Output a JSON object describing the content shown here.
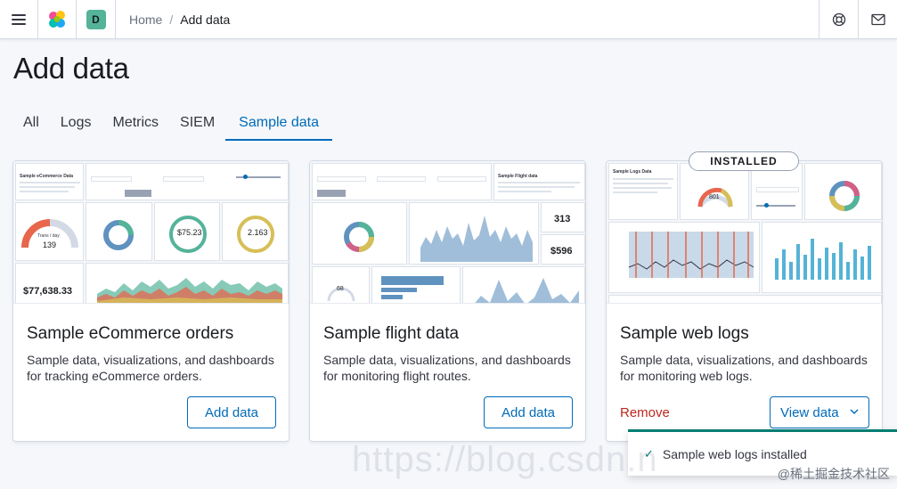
{
  "header": {
    "space_initial": "D",
    "breadcrumbs": {
      "home": "Home",
      "separator": "/",
      "current": "Add data"
    },
    "icons": [
      "menu-icon",
      "kibana-logo",
      "help-icon",
      "mail-icon"
    ]
  },
  "page": {
    "title": "Add data"
  },
  "tabs": [
    {
      "label": "All",
      "active": false
    },
    {
      "label": "Logs",
      "active": false
    },
    {
      "label": "Metrics",
      "active": false
    },
    {
      "label": "SIEM",
      "active": false
    },
    {
      "label": "Sample data",
      "active": true
    }
  ],
  "cards": [
    {
      "title": "Sample eCommerce orders",
      "description": "Sample data, visualizations, and dashboards for tracking eCommerce orders.",
      "button": "Add data",
      "preview": {
        "header_title": "Sample eCommerce Data",
        "trans_label": "Trans / day",
        "trans_value": "139",
        "avg_spend": "$75.23",
        "avg_items": "2.163",
        "total_revenue": "$77,638.33"
      }
    },
    {
      "title": "Sample flight data",
      "description": "Sample data, visualizations, and dashboards for monitoring flight routes.",
      "button": "Add data",
      "preview": {
        "header_title": "Sample Flight data",
        "total_flights": "313",
        "ticket_price": "$596",
        "delays": "68"
      }
    },
    {
      "title": "Sample web logs",
      "description": "Sample data, visualizations, and dashboards for monitoring web logs.",
      "remove": "Remove",
      "view": "View data",
      "badge": "INSTALLED",
      "preview": {
        "header_title": "Sample Logs Data",
        "unique_visitors": "801"
      }
    }
  ],
  "toast": {
    "message": "Sample web logs installed"
  },
  "watermarks": {
    "csdn": "https://blog.csdn.n",
    "juejin": "@稀土掘金技术社区"
  },
  "colors": {
    "accent": "#006bb8",
    "danger": "#bd271e",
    "success": "#017d73",
    "teal": "#54b399"
  }
}
